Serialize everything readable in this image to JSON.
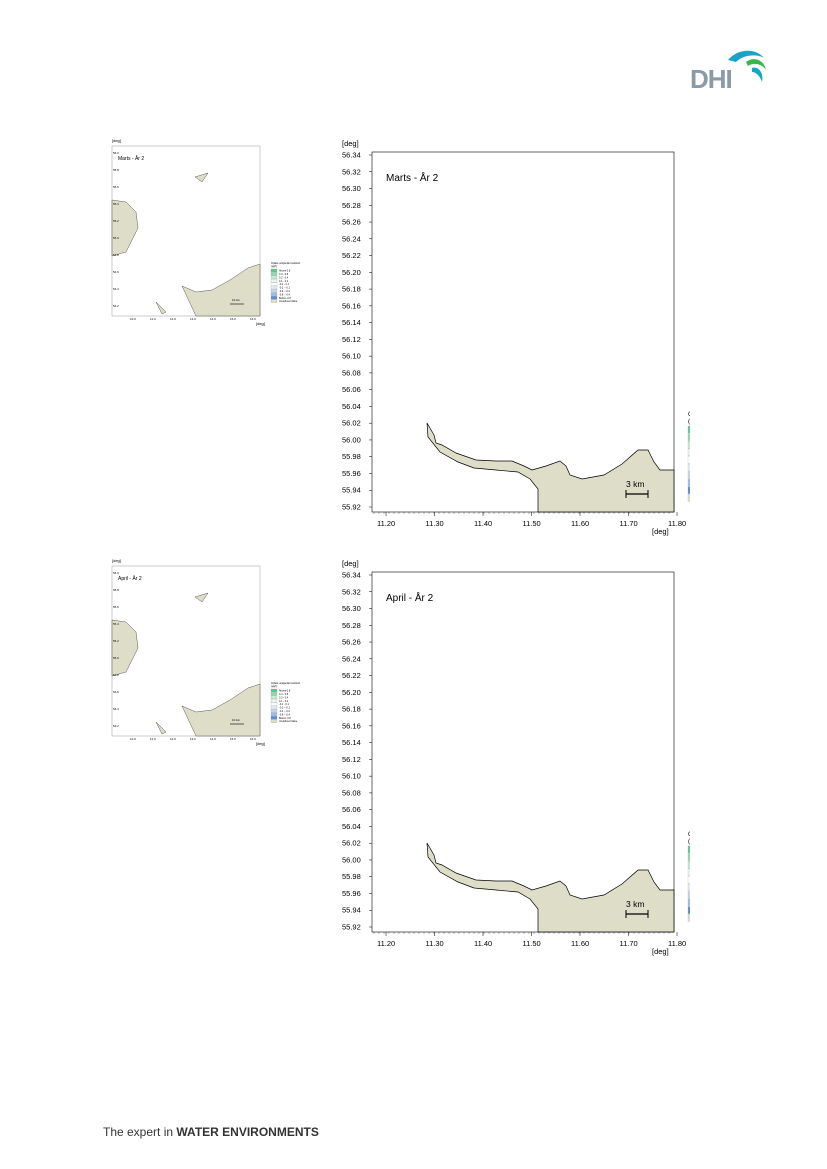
{
  "logo": {
    "text": "DHI",
    "colors": {
      "wave1": "#1aa3c8",
      "wave2": "#39b54a",
      "text": "#8a9aa8"
    }
  },
  "footer": {
    "prefix": "The expert in ",
    "emphasis": "WATER ENVIRONMENTS"
  },
  "colors": {
    "land": "#deddc8",
    "above": "#5ec98f",
    "c2": "#8fdbad",
    "c3": "#c3ecd3",
    "c4": "#e8f7ee",
    "c5": "#ffffff",
    "c6": "#e3ecf7",
    "c7": "#c4d6ef",
    "c8": "#9dbde6",
    "c9": "#78a5dc",
    "below": "#5a8fd4"
  },
  "deg_label": "[deg]",
  "y_ticks": [
    "56.34",
    "56.32",
    "56.30",
    "56.28",
    "56.26",
    "56.24",
    "56.22",
    "56.20",
    "56.18",
    "56.16",
    "56.14",
    "56.12",
    "56.10",
    "56.08",
    "56.06",
    "56.04",
    "56.02",
    "56.00",
    "55.98",
    "55.96",
    "55.94",
    "55.92"
  ],
  "x_ticks": [
    "11.20",
    "11.30",
    "11.40",
    "11.50",
    "11.60",
    "11.70",
    "11.80"
  ],
  "small_y_ticks": [
    "56.0",
    "55.8",
    "55.6",
    "55.4",
    "55.2",
    "55.0",
    "54.8",
    "54.6",
    "54.4",
    "54.2"
  ],
  "small_x_ticks": [
    "10.0",
    "11.0",
    "12.0",
    "13.0",
    "14.0",
    "15.0",
    "16.0"
  ],
  "scale_label": "3 km",
  "small_scale_label": "10 km",
  "legend": {
    "title1": "Opløst uorganisk kvælstof",
    "title2": "(µg/l)",
    "items": [
      "Above  0.8",
      "0.4 -  0.8",
      "0.2 -  0.4",
      "0.1 -  0.2",
      "-0.1 -  0.1",
      "-0.2 - -0.1",
      "-0.4 - -0.2",
      "-0.8 - -0.4",
      "Below -0.8",
      "Undefined Value"
    ]
  },
  "figures": [
    {
      "title": "Marts - År 2"
    },
    {
      "title": "April - År 2"
    }
  ]
}
